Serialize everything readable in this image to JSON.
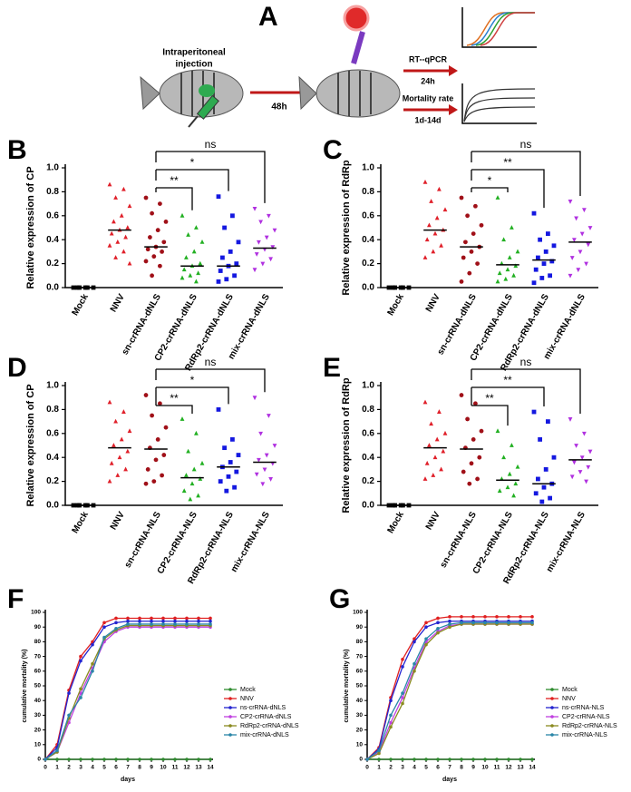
{
  "panel_a": {
    "panel_label": "A",
    "injection_line1": "Intraperitoneal",
    "injection_line2": "injection",
    "wait": "48h",
    "assay1": "RT--qPCR",
    "assay1_time": "24h",
    "assay2": "Mortality rate",
    "assay2_time": "1d-14d"
  },
  "chart_data": [
    {
      "type": "dotplot",
      "panel_label": "B",
      "ylabel": "Relative expression of CP",
      "categories": [
        "Mock",
        "NNV",
        "sn-crRNA-dNLS",
        "CP2-crRNA-dNLS",
        "RdRp2-crRNA-dNLS",
        "mix-crRNA-dNLS"
      ],
      "colors": [
        "#000000",
        "#e0202a",
        "#a01018",
        "#22b022",
        "#1418e0",
        "#b030e0"
      ],
      "markers": [
        "square",
        "triangle",
        "circle",
        "triangle",
        "square",
        "triangle-down"
      ],
      "values": [
        [
          0,
          0,
          0,
          0,
          0,
          0
        ],
        [
          0.86,
          0.82,
          0.75,
          0.68,
          0.6,
          0.55,
          0.5,
          0.48,
          0.45,
          0.42,
          0.38,
          0.35,
          0.3,
          0.25,
          0.2
        ],
        [
          0.75,
          0.7,
          0.62,
          0.55,
          0.48,
          0.42,
          0.38,
          0.34,
          0.32,
          0.3,
          0.26,
          0.22,
          0.18,
          0.1
        ],
        [
          0.6,
          0.5,
          0.44,
          0.38,
          0.3,
          0.25,
          0.2,
          0.18,
          0.15,
          0.12,
          0.1,
          0.08,
          0.05
        ],
        [
          0.76,
          0.6,
          0.5,
          0.38,
          0.3,
          0.25,
          0.2,
          0.18,
          0.14,
          0.1,
          0.07,
          0.05
        ],
        [
          0.66,
          0.6,
          0.55,
          0.48,
          0.42,
          0.38,
          0.34,
          0.32,
          0.28,
          0.24,
          0.2,
          0.15
        ]
      ],
      "medians": [
        0,
        0.48,
        0.34,
        0.18,
        0.18,
        0.33
      ],
      "comparisons": [
        {
          "label": "**",
          "from": "sn-crRNA-dNLS",
          "to": "CP2-crRNA-dNLS"
        },
        {
          "label": "*",
          "from": "sn-crRNA-dNLS",
          "to": "RdRp2-crRNA-dNLS"
        },
        {
          "label": "ns",
          "from": "sn-crRNA-dNLS",
          "to": "mix-crRNA-dNLS"
        }
      ],
      "ylim": [
        0,
        1
      ],
      "yticks": [
        {
          "value": 0,
          "label": "0.0"
        },
        0.2,
        0.4,
        0.6,
        0.8,
        {
          "value": 1,
          "label": "1.0"
        }
      ]
    },
    {
      "type": "dotplot",
      "panel_label": "C",
      "ylabel": "Relative expression of RdRp",
      "categories": [
        "Mock",
        "NNV",
        "sn-crRNA-dNLS",
        "CP2-crRNA-dNLS",
        "RdRp2-crRNA-dNLS",
        "mix-crRNA-dNLS"
      ],
      "colors": [
        "#000000",
        "#e0202a",
        "#a01018",
        "#22b022",
        "#1418e0",
        "#b030e0"
      ],
      "markers": [
        "square",
        "triangle",
        "circle",
        "triangle",
        "square",
        "triangle-down"
      ],
      "values": [
        [
          0,
          0,
          0,
          0,
          0,
          0
        ],
        [
          0.88,
          0.82,
          0.72,
          0.65,
          0.58,
          0.52,
          0.48,
          0.45,
          0.4,
          0.35,
          0.3,
          0.25
        ],
        [
          0.75,
          0.68,
          0.6,
          0.52,
          0.45,
          0.38,
          0.34,
          0.3,
          0.25,
          0.2,
          0.12,
          0.05
        ],
        [
          0.75,
          0.5,
          0.4,
          0.3,
          0.25,
          0.2,
          0.18,
          0.15,
          0.12,
          0.1,
          0.07,
          0.05
        ],
        [
          0.62,
          0.45,
          0.4,
          0.35,
          0.3,
          0.25,
          0.22,
          0.2,
          0.15,
          0.1,
          0.08,
          0.04
        ],
        [
          0.72,
          0.65,
          0.58,
          0.5,
          0.45,
          0.4,
          0.36,
          0.3,
          0.25,
          0.2,
          0.15,
          0.1
        ]
      ],
      "medians": [
        0,
        0.48,
        0.34,
        0.19,
        0.23,
        0.38
      ],
      "comparisons": [
        {
          "label": "*",
          "from": "sn-crRNA-dNLS",
          "to": "CP2-crRNA-dNLS"
        },
        {
          "label": "**",
          "from": "sn-crRNA-dNLS",
          "to": "RdRp2-crRNA-dNLS"
        },
        {
          "label": "ns",
          "from": "sn-crRNA-dNLS",
          "to": "mix-crRNA-dNLS"
        }
      ],
      "ylim": [
        0,
        1
      ],
      "yticks": [
        {
          "value": 0,
          "label": "0.0"
        },
        0.2,
        0.4,
        0.6,
        0.8,
        {
          "value": 1,
          "label": "1.0"
        }
      ]
    },
    {
      "type": "dotplot",
      "panel_label": "D",
      "ylabel": "Relative expression of CP",
      "categories": [
        "Mock",
        "NNV",
        "sn-crRNA-NLS",
        "CP2-crRNA-NLS",
        "RdRp2-crRNA-NLS",
        "mix-crRNA-NLS"
      ],
      "colors": [
        "#000000",
        "#e0202a",
        "#a01018",
        "#22b022",
        "#1418e0",
        "#b030e0"
      ],
      "markers": [
        "square",
        "triangle",
        "circle",
        "triangle",
        "square",
        "triangle-down"
      ],
      "values": [
        [
          0,
          0,
          0,
          0,
          0,
          0
        ],
        [
          0.86,
          0.78,
          0.7,
          0.62,
          0.55,
          0.5,
          0.45,
          0.4,
          0.35,
          0.3,
          0.25,
          0.2
        ],
        [
          0.92,
          0.85,
          0.75,
          0.65,
          0.55,
          0.48,
          0.42,
          0.38,
          0.3,
          0.25,
          0.2,
          0.18
        ],
        [
          0.72,
          0.6,
          0.45,
          0.35,
          0.3,
          0.25,
          0.22,
          0.18,
          0.12,
          0.08,
          0.05
        ],
        [
          0.8,
          0.55,
          0.48,
          0.42,
          0.36,
          0.32,
          0.28,
          0.24,
          0.2,
          0.15,
          0.12
        ],
        [
          0.9,
          0.75,
          0.6,
          0.5,
          0.42,
          0.38,
          0.35,
          0.3,
          0.26,
          0.22,
          0.18
        ]
      ],
      "medians": [
        0,
        0.48,
        0.47,
        0.23,
        0.32,
        0.36
      ],
      "comparisons": [
        {
          "label": "**",
          "from": "sn-crRNA-NLS",
          "to": "CP2-crRNA-NLS"
        },
        {
          "label": "*",
          "from": "sn-crRNA-NLS",
          "to": "RdRp2-crRNA-NLS"
        },
        {
          "label": "ns",
          "from": "sn-crRNA-NLS",
          "to": "mix-crRNA-NLS"
        }
      ],
      "ylim": [
        0,
        1
      ],
      "yticks": [
        {
          "value": 0,
          "label": "0.0"
        },
        0.2,
        0.4,
        0.6,
        0.8,
        {
          "value": 1,
          "label": "1.0"
        }
      ]
    },
    {
      "type": "dotplot",
      "panel_label": "E",
      "ylabel": "Relative expression of RdRp",
      "categories": [
        "Mock",
        "NNV",
        "sn-crRNA-NLS",
        "CP2-crRNA-NLS",
        "RdRp2-crRNA-NLS",
        "mix-crRNA-NLS"
      ],
      "colors": [
        "#000000",
        "#e0202a",
        "#a01018",
        "#22b022",
        "#1418e0",
        "#b030e0"
      ],
      "markers": [
        "square",
        "triangle",
        "circle",
        "triangle",
        "square",
        "triangle-down"
      ],
      "values": [
        [
          0,
          0,
          0,
          0,
          0,
          0
        ],
        [
          0.86,
          0.78,
          0.68,
          0.6,
          0.55,
          0.5,
          0.45,
          0.4,
          0.35,
          0.3,
          0.25,
          0.22
        ],
        [
          0.92,
          0.85,
          0.72,
          0.62,
          0.55,
          0.48,
          0.4,
          0.35,
          0.28,
          0.22,
          0.18
        ],
        [
          0.62,
          0.5,
          0.4,
          0.32,
          0.26,
          0.22,
          0.18,
          0.15,
          0.12,
          0.08
        ],
        [
          0.78,
          0.7,
          0.55,
          0.4,
          0.3,
          0.22,
          0.18,
          0.15,
          0.1,
          0.06,
          0.03
        ],
        [
          0.72,
          0.6,
          0.5,
          0.45,
          0.4,
          0.36,
          0.32,
          0.28,
          0.24,
          0.2
        ]
      ],
      "medians": [
        0,
        0.48,
        0.47,
        0.21,
        0.18,
        0.38
      ],
      "comparisons": [
        {
          "label": "**",
          "from": "sn-crRNA-NLS",
          "to": "CP2-crRNA-NLS"
        },
        {
          "label": "**",
          "from": "sn-crRNA-NLS",
          "to": "RdRp2-crRNA-NLS"
        },
        {
          "label": "ns",
          "from": "sn-crRNA-NLS",
          "to": "mix-crRNA-NLS"
        }
      ],
      "ylim": [
        0,
        1
      ],
      "yticks": [
        {
          "value": 0,
          "label": "0.0"
        },
        0.2,
        0.4,
        0.6,
        0.8,
        {
          "value": 1,
          "label": "1.0"
        }
      ]
    },
    {
      "type": "line",
      "panel_label": "F",
      "xlabel": "days",
      "ylabel": "cumulative mortality (%)",
      "x": [
        0,
        1,
        2,
        3,
        4,
        5,
        6,
        7,
        8,
        9,
        10,
        11,
        12,
        13,
        14
      ],
      "series": [
        {
          "name": "Mock",
          "color": "#2e8b2e",
          "values": [
            0,
            0,
            0,
            0,
            0,
            0,
            0,
            0,
            0,
            0,
            0,
            0,
            0,
            0,
            0
          ]
        },
        {
          "name": "NNV",
          "color": "#e02020",
          "values": [
            0,
            10,
            47,
            70,
            80,
            93,
            96,
            96,
            96,
            96,
            96,
            96,
            96,
            96,
            96
          ]
        },
        {
          "name": "ns-crRNA-dNLS",
          "color": "#2424d0",
          "values": [
            0,
            8,
            45,
            67,
            78,
            90,
            93,
            94,
            94,
            94,
            94,
            94,
            94,
            94,
            94
          ]
        },
        {
          "name": "CP2-crRNA-dNLS",
          "color": "#c040e0",
          "values": [
            0,
            5,
            25,
            45,
            62,
            80,
            87,
            90,
            90,
            90,
            90,
            90,
            90,
            90,
            90
          ]
        },
        {
          "name": "RdRp2-crRNA-dNLS",
          "color": "#8a8a20",
          "values": [
            0,
            5,
            28,
            48,
            65,
            82,
            88,
            91,
            91,
            91,
            91,
            91,
            91,
            91,
            91
          ]
        },
        {
          "name": "mix-crRNA-dNLS",
          "color": "#2a86a8",
          "values": [
            0,
            6,
            30,
            42,
            60,
            83,
            89,
            92,
            92,
            92,
            92,
            92,
            92,
            92,
            92
          ]
        }
      ],
      "xlim": [
        0,
        14
      ],
      "xticks": [
        0,
        1,
        2,
        3,
        4,
        5,
        6,
        7,
        8,
        9,
        10,
        11,
        12,
        13,
        14
      ],
      "ylim": [
        0,
        100
      ],
      "yticks": [
        0,
        10,
        20,
        30,
        40,
        50,
        60,
        70,
        80,
        90,
        100
      ]
    },
    {
      "type": "line",
      "panel_label": "G",
      "xlabel": "days",
      "ylabel": "cumulative mortality (%)",
      "x": [
        0,
        1,
        2,
        3,
        4,
        5,
        6,
        7,
        8,
        9,
        10,
        11,
        12,
        13,
        14
      ],
      "series": [
        {
          "name": "Mock",
          "color": "#2e8b2e",
          "values": [
            0,
            0,
            0,
            0,
            0,
            0,
            0,
            0,
            0,
            0,
            0,
            0,
            0,
            0,
            0
          ]
        },
        {
          "name": "NNV",
          "color": "#e02020",
          "values": [
            0,
            8,
            42,
            68,
            82,
            93,
            96,
            97,
            97,
            97,
            97,
            97,
            97,
            97,
            97
          ]
        },
        {
          "name": "ns-crRNA-NLS",
          "color": "#2424d0",
          "values": [
            0,
            7,
            40,
            63,
            80,
            90,
            93,
            94,
            94,
            94,
            94,
            94,
            94,
            94,
            94
          ]
        },
        {
          "name": "CP2-crRNA-NLS",
          "color": "#c040e0",
          "values": [
            0,
            5,
            25,
            42,
            62,
            80,
            87,
            91,
            92,
            92,
            92,
            92,
            92,
            92,
            92
          ]
        },
        {
          "name": "RdRp2-crRNA-NLS",
          "color": "#8a8a20",
          "values": [
            0,
            4,
            22,
            38,
            60,
            78,
            86,
            90,
            92,
            92,
            92,
            92,
            92,
            92,
            92
          ]
        },
        {
          "name": "mix-crRNA-NLS",
          "color": "#2a86a8",
          "values": [
            0,
            6,
            30,
            45,
            65,
            82,
            89,
            92,
            93,
            93,
            93,
            93,
            93,
            93,
            93
          ]
        }
      ],
      "xlim": [
        0,
        14
      ],
      "xticks": [
        0,
        1,
        2,
        3,
        4,
        5,
        6,
        7,
        8,
        9,
        10,
        11,
        12,
        13,
        14
      ],
      "ylim": [
        0,
        100
      ],
      "yticks": [
        0,
        10,
        20,
        30,
        40,
        50,
        60,
        70,
        80,
        90,
        100
      ]
    }
  ]
}
